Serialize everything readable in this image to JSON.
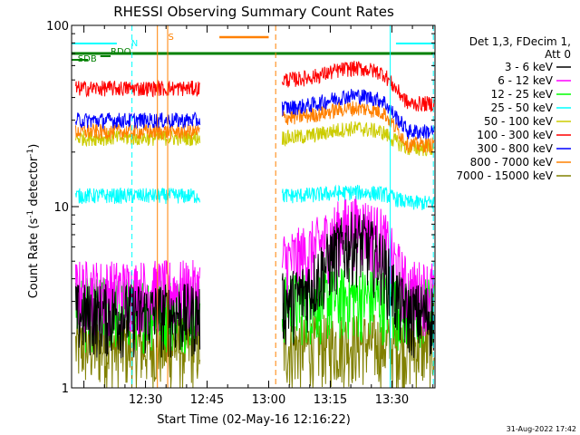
{
  "chart_data": {
    "type": "line",
    "title": "RHESSI Observing Summary Count Rates",
    "xlabel": "Start Time (02-May-16 12:16:22)",
    "ylabel": "Count Rate (s",
    "ylabel_sup": "-1",
    "ylabel_tail": " detector",
    "ylabel_close": ")",
    "y_scale": "log",
    "ylim": [
      1,
      100
    ],
    "y_ticks": [
      "1",
      "10",
      "100"
    ],
    "xlim_minutes": [
      12.0,
      100.5
    ],
    "x_ticks": [
      {
        "label": "12:30",
        "minute": 30
      },
      {
        "label": "12:45",
        "minute": 45
      },
      {
        "label": "13:00",
        "minute": 60
      },
      {
        "label": "13:15",
        "minute": 75
      },
      {
        "label": "13:30",
        "minute": 90
      },
      {
        "label": "13:45",
        "minute": 105
      }
    ],
    "legend_header": [
      "Det 1,3, FDecim 1,",
      "Att 0"
    ],
    "series": [
      {
        "name": "3 - 6 keV",
        "color": "#000000",
        "level_pre": 2.6,
        "level_mid": 2.9,
        "level_post": 2.6,
        "flare_peak": 6.5
      },
      {
        "name": "6 - 12 keV",
        "color": "#ff00ff",
        "level_pre": 3.5,
        "level_mid": 5.0,
        "level_post": 3.5,
        "flare_peak": 8.0
      },
      {
        "name": "12 - 25 keV",
        "color": "#00ff00",
        "level_pre": 2.8,
        "level_mid": 3.0,
        "level_post": 2.8,
        "flare_peak": 3.2
      },
      {
        "name": "25 - 50 keV",
        "color": "#00ffff",
        "level_pre": 11.5,
        "level_mid": 11.5,
        "level_post": 10.5,
        "flare_peak": 12.0
      },
      {
        "name": "50 - 100 keV",
        "color": "#cccc00",
        "level_pre": 24.0,
        "level_mid": 24.0,
        "level_post": 21.0,
        "flare_peak": 27.0
      },
      {
        "name": "100 - 300 keV",
        "color": "#ff0000",
        "level_pre": 45.0,
        "level_mid": 50.0,
        "level_post": 37.0,
        "flare_peak": 58.0
      },
      {
        "name": "300 - 800 keV",
        "color": "#0000ff",
        "level_pre": 30.0,
        "level_mid": 35.0,
        "level_post": 26.0,
        "flare_peak": 41.0
      },
      {
        "name": "800 - 7000 keV",
        "color": "#ff8000",
        "level_pre": 26.0,
        "level_mid": 31.0,
        "level_post": 22.0,
        "flare_peak": 35.0
      },
      {
        "name": "7000 - 15000 keV",
        "color": "#808000",
        "level_pre": 1.7,
        "level_mid": 1.7,
        "level_post": 1.7,
        "flare_peak": 1.8
      }
    ],
    "flags": [
      {
        "label": "N",
        "color": "#00ffff"
      },
      {
        "label": "S",
        "color": "#ff8000"
      },
      {
        "label": "RDO",
        "color": "#008000"
      },
      {
        "label": "SDB",
        "color": "#008000"
      }
    ],
    "timestamp": "31-Aug-2022 17:42"
  }
}
